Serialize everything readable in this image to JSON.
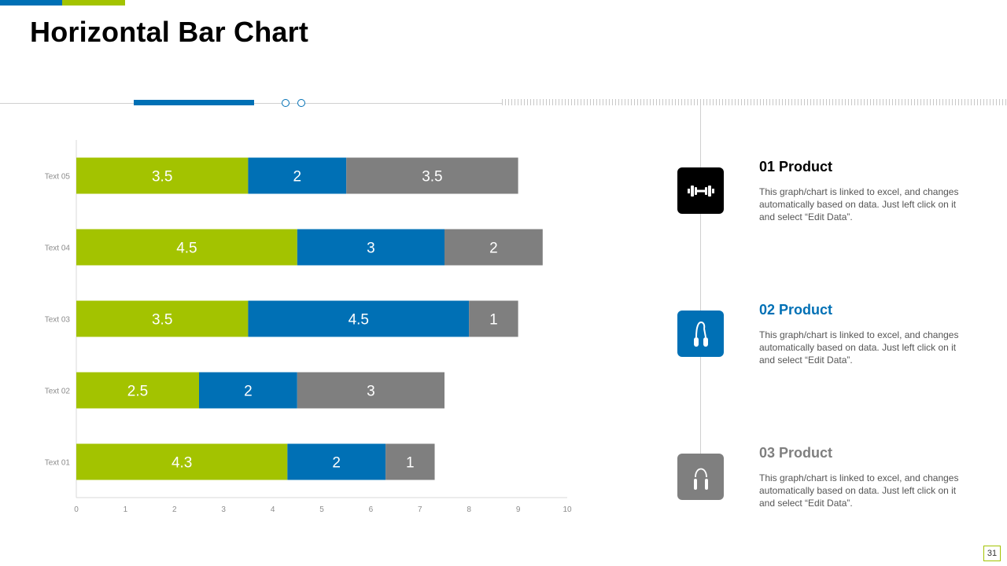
{
  "title": "Horizontal Bar Chart",
  "colors": {
    "green": "#a3c300",
    "blue": "#0070b5",
    "gray": "#7f7f7f",
    "black": "#000000"
  },
  "chart_data": {
    "type": "bar",
    "orientation": "horizontal",
    "stacked": true,
    "categories": [
      "Text 05",
      "Text 04",
      "Text 03",
      "Text 02",
      "Text 01"
    ],
    "series": [
      {
        "color": "#a3c300",
        "values": [
          3.5,
          4.5,
          3.5,
          2.5,
          4.3
        ]
      },
      {
        "color": "#0070b5",
        "values": [
          2,
          3,
          4.5,
          2,
          2
        ]
      },
      {
        "color": "#7f7f7f",
        "values": [
          3.5,
          2,
          1,
          3,
          1
        ]
      }
    ],
    "xlim": [
      0,
      10
    ],
    "xticks": [
      "0",
      "1",
      "2",
      "3",
      "4",
      "5",
      "6",
      "7",
      "8",
      "9",
      "10"
    ],
    "grid": false,
    "data_labels": true
  },
  "features": [
    {
      "number": "01",
      "title": "01 Product",
      "color": "#000000",
      "icon": "dumbbell-icon",
      "desc": "This graph/chart is linked to excel, and changes automatically based on data. Just left click on it and select “Edit Data”."
    },
    {
      "number": "02",
      "title": "02 Product",
      "color": "#0070b5",
      "icon": "hand-grip-icon",
      "desc": "This graph/chart is linked to excel, and changes automatically based on data. Just left click on it and select “Edit Data”."
    },
    {
      "number": "03",
      "title": "03 Product",
      "color": "#7f7f7f",
      "icon": "jump-rope-icon",
      "desc": "This graph/chart is linked to excel, and changes automatically based on data. Just left click on it and select “Edit Data”."
    }
  ],
  "page_number": "31"
}
